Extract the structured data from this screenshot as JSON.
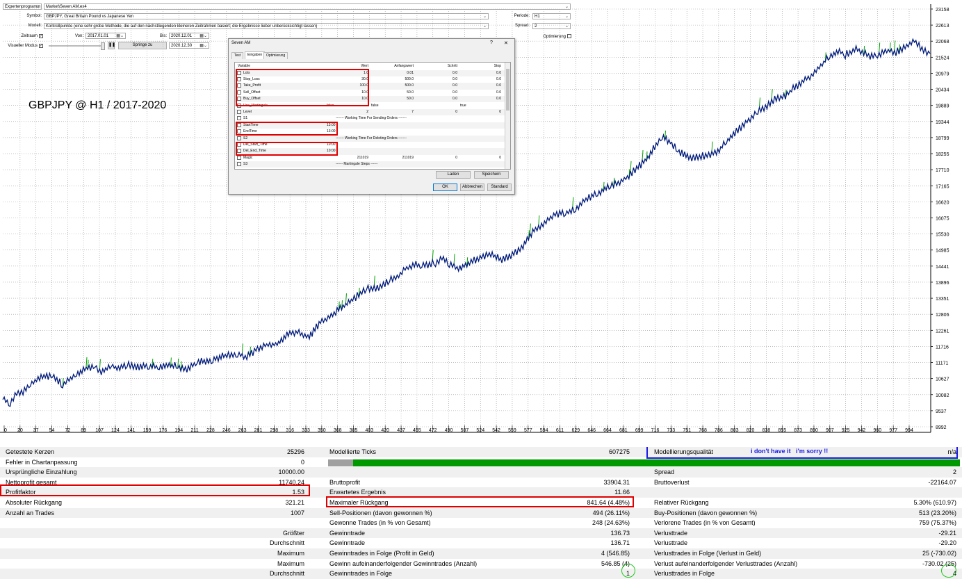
{
  "toolbar": {
    "expert_select": "Expertenprogramm",
    "expert_file": "Market\\Seven AM.ex4",
    "symbol_label": "Symbol:",
    "symbol_value": "GBPJPY, Great Britain Pound vs Japanese Yen",
    "period_label": "Periode:",
    "period_value": "H1",
    "model_label": "Modell:",
    "model_value": "Kontrollpunkte (eine sehr grobe Methode, die auf den nächstliegenden kleineren Zeitrahmen basiert; die Ergebnisse lieber unberücksichtigt lassen)",
    "spread_label": "Spread:",
    "spread_value": "2",
    "range_label": "Zeitraum",
    "from_label": "Von:",
    "from_value": "2017.01.01",
    "to_label": "Bis:",
    "to_value": "2020.12.01",
    "optimize_label": "Optimierung",
    "visual_label": "Visueller Modus",
    "jump_button": "Springe zu",
    "jump_date": "2020.12.30"
  },
  "chart_title": "GBPJPY @ H1 / 2017-2020",
  "dialog": {
    "title": "Seven AM",
    "help": "?",
    "close": "✕",
    "tabs": [
      "Test",
      "Eingaben",
      "Optimierung"
    ],
    "active_tab": "Eingaben",
    "headers": {
      "variable": "Variable",
      "value": "Wert",
      "start": "Anfangswert",
      "step": "Schritt",
      "stop": "Stop"
    },
    "rows": [
      {
        "name": "Lots",
        "value": "1.0",
        "start": "0.01",
        "step": "0.0",
        "stop": "0.0"
      },
      {
        "name": "Stop_Loss",
        "value": "30.0",
        "start": "500.0",
        "step": "0.0",
        "stop": "0.0"
      },
      {
        "name": "Take_Profit",
        "value": "100.0",
        "start": "500.0",
        "step": "0.0",
        "stop": "0.0"
      },
      {
        "name": "Sell_Offset",
        "value": "10.0",
        "start": "50.0",
        "step": "0.0",
        "stop": "0.0"
      },
      {
        "name": "Buy_Offset",
        "value": "10.0",
        "start": "50.0",
        "step": "0.0",
        "stop": "0.0"
      },
      {
        "name": "Use_Martingale",
        "value": "false",
        "start": "false",
        "step": "",
        "stop": "true"
      },
      {
        "name": "Level",
        "value": "2",
        "start": "7",
        "step": "0",
        "stop": "0"
      },
      {
        "name": "S1",
        "value": "------- Working Time For Sending Orders -------",
        "start": "",
        "step": "",
        "stop": ""
      },
      {
        "name": "StartTime",
        "value": "13:00",
        "start": "",
        "step": "",
        "stop": ""
      },
      {
        "name": "EndTime",
        "value": "13:00",
        "start": "",
        "step": "",
        "stop": ""
      },
      {
        "name": "S2",
        "value": "------- Working Time For Deleting Orders -------",
        "start": "",
        "step": "",
        "stop": ""
      },
      {
        "name": "Del_Start_Time",
        "value": "10:00",
        "start": "",
        "step": "",
        "stop": ""
      },
      {
        "name": "Del_End_Time",
        "value": "10:00",
        "start": "",
        "step": "",
        "stop": ""
      },
      {
        "name": "Magic",
        "value": "211019",
        "start": "211019",
        "step": "0",
        "stop": "0"
      },
      {
        "name": "S3",
        "value": "------ Martingale Steps ------",
        "start": "",
        "step": "",
        "stop": ""
      }
    ],
    "load_button": "Laden",
    "save_button": "Speichern",
    "ok_button": "OK",
    "cancel_button": "Abbrechen",
    "default_button": "Standard"
  },
  "chart_data": {
    "type": "line",
    "title": "GBPJPY @ H1 / 2017-2020",
    "x_ticks": [
      "0",
      "20",
      "37",
      "54",
      "72",
      "89",
      "107",
      "124",
      "141",
      "159",
      "176",
      "194",
      "211",
      "228",
      "246",
      "263",
      "281",
      "298",
      "316",
      "333",
      "350",
      "368",
      "385",
      "403",
      "420",
      "437",
      "455",
      "472",
      "490",
      "507",
      "524",
      "542",
      "559",
      "577",
      "594",
      "611",
      "629",
      "646",
      "664",
      "681",
      "699",
      "716",
      "733",
      "751",
      "768",
      "786",
      "803",
      "820",
      "838",
      "855",
      "873",
      "890",
      "907",
      "925",
      "942",
      "960",
      "977",
      "994"
    ],
    "y_ticks": [
      "23158",
      "22613",
      "22068",
      "21524",
      "20979",
      "20434",
      "19889",
      "19344",
      "18799",
      "18255",
      "17710",
      "17165",
      "16620",
      "16075",
      "15530",
      "14985",
      "14441",
      "13896",
      "13351",
      "12806",
      "12261",
      "11716",
      "11171",
      "10627",
      "10082",
      "9537",
      "8992"
    ],
    "ylim": [
      8992,
      23158
    ],
    "xlim": [
      0,
      1007
    ],
    "series": [
      {
        "values": [
          [
            0,
            10000
          ],
          [
            8,
            9750
          ],
          [
            15,
            10150
          ],
          [
            22,
            10200
          ],
          [
            30,
            10450
          ],
          [
            40,
            10650
          ],
          [
            54,
            10750
          ],
          [
            65,
            10400
          ],
          [
            72,
            10600
          ],
          [
            80,
            10800
          ],
          [
            89,
            10950
          ],
          [
            100,
            11050
          ],
          [
            107,
            10850
          ],
          [
            118,
            11100
          ],
          [
            124,
            10950
          ],
          [
            135,
            11100
          ],
          [
            145,
            11000
          ],
          [
            159,
            11050
          ],
          [
            170,
            11000
          ],
          [
            176,
            11100
          ],
          [
            190,
            11050
          ],
          [
            200,
            10900
          ],
          [
            211,
            11200
          ],
          [
            228,
            11250
          ],
          [
            240,
            11400
          ],
          [
            255,
            11450
          ],
          [
            265,
            11350
          ],
          [
            275,
            11600
          ],
          [
            285,
            11750
          ],
          [
            298,
            11800
          ],
          [
            310,
            12150
          ],
          [
            320,
            12200
          ],
          [
            333,
            12050
          ],
          [
            345,
            12550
          ],
          [
            355,
            12700
          ],
          [
            368,
            13050
          ],
          [
            380,
            13300
          ],
          [
            395,
            13700
          ],
          [
            405,
            13650
          ],
          [
            420,
            13950
          ],
          [
            430,
            14100
          ],
          [
            437,
            14350
          ],
          [
            447,
            14500
          ],
          [
            455,
            14450
          ],
          [
            470,
            14550
          ],
          [
            477,
            14700
          ],
          [
            485,
            14500
          ],
          [
            495,
            14350
          ],
          [
            507,
            14550
          ],
          [
            520,
            14750
          ],
          [
            530,
            14850
          ],
          [
            542,
            14650
          ],
          [
            555,
            14850
          ],
          [
            565,
            15100
          ],
          [
            577,
            15650
          ],
          [
            590,
            15950
          ],
          [
            600,
            16200
          ],
          [
            611,
            16250
          ],
          [
            622,
            16350
          ],
          [
            635,
            16750
          ],
          [
            646,
            16900
          ],
          [
            660,
            17200
          ],
          [
            670,
            17300
          ],
          [
            680,
            17500
          ],
          [
            690,
            17800
          ],
          [
            699,
            18050
          ],
          [
            708,
            18500
          ],
          [
            716,
            18850
          ],
          [
            725,
            18650
          ],
          [
            733,
            18350
          ],
          [
            745,
            18100
          ],
          [
            755,
            18150
          ],
          [
            765,
            18200
          ],
          [
            775,
            18300
          ],
          [
            786,
            18650
          ],
          [
            795,
            18950
          ],
          [
            805,
            19250
          ],
          [
            820,
            19700
          ],
          [
            830,
            19850
          ],
          [
            840,
            20150
          ],
          [
            850,
            20200
          ],
          [
            860,
            20500
          ],
          [
            873,
            20800
          ],
          [
            880,
            20950
          ],
          [
            890,
            21300
          ],
          [
            898,
            21550
          ],
          [
            907,
            21750
          ],
          [
            915,
            21600
          ],
          [
            925,
            21800
          ],
          [
            935,
            21700
          ],
          [
            942,
            21550
          ],
          [
            950,
            21600
          ],
          [
            960,
            21750
          ],
          [
            970,
            21700
          ],
          [
            980,
            21850
          ],
          [
            990,
            22100
          ],
          [
            1000,
            21750
          ],
          [
            1007,
            21650
          ]
        ]
      }
    ]
  },
  "watermark_note": "i don't have it   i'm sorry !!",
  "stats": {
    "rows": [
      {
        "l1": "Getestete Kerzen",
        "v1": "25296",
        "l2": "Modellierte Ticks",
        "v2": "607275",
        "l3": "Modellierungsqualität",
        "v3": "n/a"
      },
      {
        "l1": "Fehler in Chartanpassung",
        "v1": "0",
        "l2": "",
        "v2": "",
        "l3": "",
        "v3": ""
      },
      {
        "l1": "Ursprüngliche Einzahlung",
        "v1": "10000.00",
        "l2": "",
        "v2": "",
        "l3": "Spread",
        "v3": "2"
      },
      {
        "l1": "Nettoprofit gesamt",
        "v1": "11740.24",
        "l2": "Bruttoprofit",
        "v2": "33904.31",
        "l3": "Bruttoverlust",
        "v3": "-22164.07"
      },
      {
        "l1": "Profitfaktor",
        "v1": "1.53",
        "l2": "Erwartetes Ergebnis",
        "v2": "11.66",
        "l3": "",
        "v3": ""
      },
      {
        "l1": "Absoluter Rückgang",
        "v1": "321.21",
        "l2": "Maximaler Rückgang",
        "v2": "841.64 (4.48%)",
        "l3": "Relativer Rückgang",
        "v3": "5.30% (610.97)"
      },
      {
        "l1": "Anzahl an Trades",
        "v1": "1007",
        "l2": "Sell-Positionen (davon gewonnen %)",
        "v2": "494 (26.11%)",
        "l3": "Buy-Positionen (davon gewonnen %)",
        "v3": "513 (23.20%)"
      },
      {
        "l1": "",
        "v1": "",
        "l2": "Gewonne Trades (in % von Gesamt)",
        "v2": "248 (24.63%)",
        "l3": "Verlorene Trades (in % von Gesamt)",
        "v3": "759 (75.37%)"
      },
      {
        "l1": "",
        "v1": "Größter",
        "l2": "Gewinntrade",
        "v2": "136.73",
        "l3": "Verlusttrade",
        "v3": "-29.21"
      },
      {
        "l1": "",
        "v1": "Durchschnitt",
        "l2": "Gewinntrade",
        "v2": "136.71",
        "l3": "Verlusttrade",
        "v3": "-29.20"
      },
      {
        "l1": "",
        "v1": "Maximum",
        "l2": "Gewinntrades in Folge (Profit in Geld)",
        "v2": "4 (546.85)",
        "l3": "Verlusttrades in Folge (Verlust in Geld)",
        "v3": "25 (-730.02)"
      },
      {
        "l1": "",
        "v1": "Maximum",
        "l2": "Gewinn aufeinanderfolgender Gewinntrades (Anzahl)",
        "v2": "546.85 (4)",
        "l3": "Verlust aufeinanderfolgender Verlusttrades (Anzahl)",
        "v3": "-730.02 (25)"
      },
      {
        "l1": "",
        "v1": "Durchschnitt",
        "l2": "Gewinntrades in Folge",
        "v2": "1",
        "l3": "Verlusttrades in Folge",
        "v3": "4"
      }
    ],
    "progress_fraction": 1.0
  },
  "colors": {
    "line": "#001a7a",
    "accent_green": "#00a000",
    "highlight_red": "#e00000",
    "annot_blue": "#1a1ae6"
  }
}
